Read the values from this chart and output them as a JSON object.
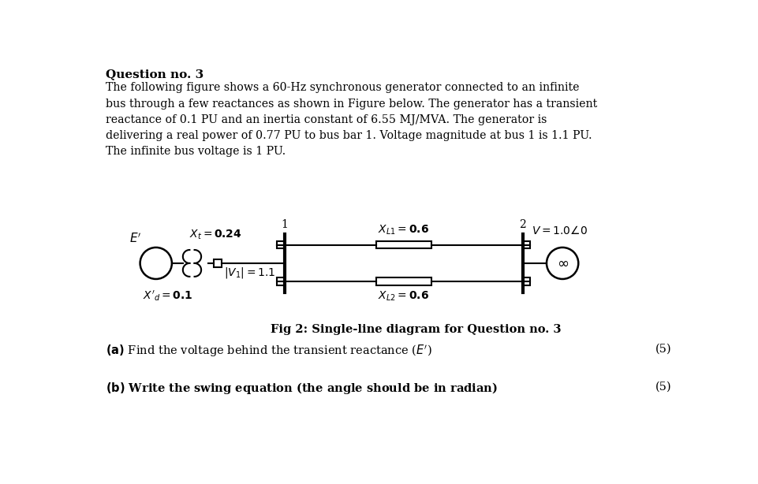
{
  "title": "Question no. 3",
  "body_text": "The following figure shows a 60-Hz synchronous generator connected to an infinite\nbus through a few reactances as shown in Figure below. The generator has a transient\nreactance of 0.1 PU and an inertia constant of 6.55 MJ/MVA. The generator is\ndelivering a real power of 0.77 PU to bus bar 1. Voltage magnitude at bus 1 is 1.1 PU.\nThe infinite bus voltage is 1 PU.",
  "fig_caption": "Fig 2: Single-line diagram for Question no. 3",
  "question_a": "(a) Find the voltage behind the transient reactance ( E’)",
  "question_b": "(b) Write the swing equation (the angle should be in radian)",
  "marks_a": "(5)",
  "marks_b": "(5)",
  "bg_color": "#ffffff",
  "text_color": "#000000"
}
